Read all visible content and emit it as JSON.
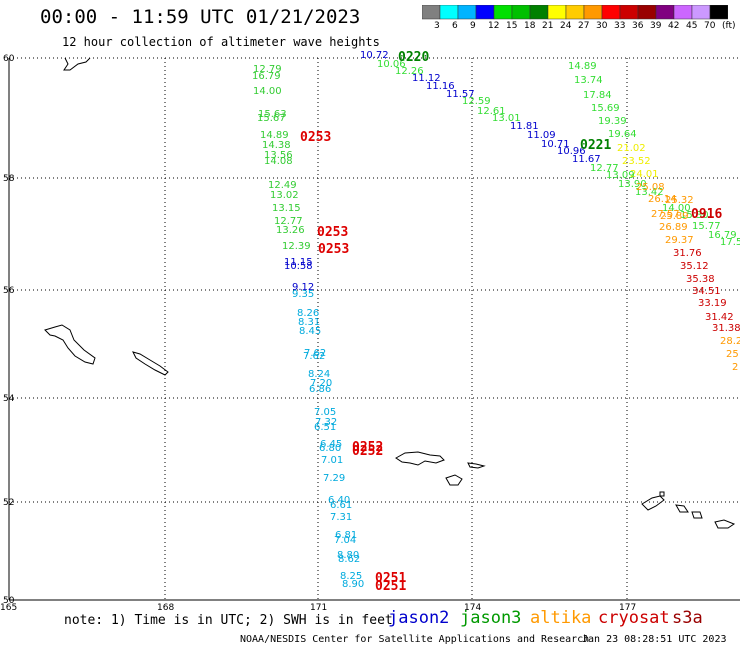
{
  "header": {
    "title": "00:00 - 11:59 UTC 01/21/2023",
    "subtitle": "12 hour collection of altimeter wave heights"
  },
  "colorbar": {
    "colors": [
      "#808080",
      "#00ffff",
      "#00b4ff",
      "#0000ff",
      "#00e000",
      "#00c000",
      "#008000",
      "#ffff00",
      "#ffcc00",
      "#ff9900",
      "#ff0000",
      "#cc0000",
      "#990000",
      "#800080",
      "#cc66ff",
      "#cc99ff",
      "#000000"
    ],
    "labels": [
      "3",
      "6",
      "9",
      "12",
      "15",
      "18",
      "21",
      "24",
      "27",
      "30",
      "33",
      "36",
      "39",
      "42",
      "45",
      "70",
      "(ft)"
    ]
  },
  "map": {
    "lat_labels": [
      "60",
      "58",
      "56",
      "54",
      "52",
      "50"
    ],
    "lon_labels": [
      "165",
      "168",
      "171",
      "174",
      "177"
    ],
    "passes": [
      {
        "id": "p1",
        "color": "#33cc33",
        "points": [
          [
            "12.79",
            "253",
            "72"
          ],
          [
            "16.79",
            "252",
            "79"
          ],
          [
            "14.00",
            "253",
            "94"
          ],
          [
            "15.63",
            "258",
            "117"
          ],
          [
            "15.67",
            "257",
            "121"
          ],
          [
            "14.89",
            "260",
            "138"
          ],
          [
            "14.38",
            "262",
            "148"
          ],
          [
            "13.56",
            "264",
            "158"
          ],
          [
            "14.08",
            "264",
            "164"
          ],
          [
            "12.49",
            "268",
            "188"
          ],
          [
            "13.02",
            "270",
            "198"
          ],
          [
            "13.15",
            "272",
            "211"
          ],
          [
            "12.77",
            "274",
            "224"
          ],
          [
            "13.26",
            "276",
            "233"
          ],
          [
            "12.39",
            "282",
            "249"
          ]
        ]
      },
      {
        "id": "p2",
        "color": "#0000cc",
        "points": [
          [
            "11.15",
            "284",
            "265"
          ],
          [
            "10.58",
            "284",
            "269"
          ],
          [
            "9.12",
            "292",
            "290"
          ]
        ]
      },
      {
        "id": "p3",
        "color": "#00aadd",
        "points": [
          [
            "9.35",
            "292",
            "297"
          ],
          [
            "8.26",
            "297",
            "316"
          ],
          [
            "8.31",
            "298",
            "325"
          ],
          [
            "8.45",
            "299",
            "334"
          ],
          [
            "7.62",
            "304",
            "356"
          ],
          [
            "7.62",
            "303",
            "359"
          ],
          [
            "8.24",
            "308",
            "377"
          ],
          [
            "7.20",
            "310",
            "386"
          ],
          [
            "6.86",
            "309",
            "392"
          ],
          [
            "7.05",
            "314",
            "415"
          ],
          [
            "7.32",
            "315",
            "425"
          ],
          [
            "6.51",
            "314",
            "430"
          ],
          [
            "6.45",
            "320",
            "447"
          ],
          [
            "6.80",
            "319",
            "451"
          ],
          [
            "7.01",
            "321",
            "463"
          ],
          [
            "7.29",
            "323",
            "481"
          ],
          [
            "6.40",
            "328",
            "503"
          ],
          [
            "6.61",
            "330",
            "508"
          ],
          [
            "7.31",
            "330",
            "520"
          ],
          [
            "6.81",
            "335",
            "538"
          ],
          [
            "7.04",
            "334",
            "543"
          ],
          [
            "8.80",
            "337",
            "558"
          ],
          [
            "8.62",
            "338",
            "562"
          ],
          [
            "8.25",
            "340",
            "579"
          ],
          [
            "8.90",
            "342",
            "587"
          ]
        ]
      },
      {
        "id": "p4",
        "color": "#0000cc",
        "points": [
          [
            "10.72",
            "360",
            "58"
          ],
          [
            "11.12",
            "412",
            "81"
          ],
          [
            "11.16",
            "426",
            "89"
          ],
          [
            "11.57",
            "446",
            "97"
          ],
          [
            "11.81",
            "510",
            "129"
          ],
          [
            "11.09",
            "527",
            "138"
          ],
          [
            "10.71",
            "541",
            "147"
          ],
          [
            "10.96",
            "557",
            "154"
          ],
          [
            "11.67",
            "572",
            "162"
          ]
        ]
      },
      {
        "id": "p5",
        "color": "#33dd33",
        "points": [
          [
            "10.06",
            "377",
            "67"
          ],
          [
            "12.26",
            "395",
            "74"
          ],
          [
            "12.59",
            "462",
            "104"
          ],
          [
            "12.61",
            "477",
            "114"
          ],
          [
            "13.01",
            "492",
            "121"
          ],
          [
            "12.77",
            "590",
            "171"
          ]
        ]
      },
      {
        "id": "p6",
        "color": "#33dd33",
        "points": [
          [
            "14.89",
            "568",
            "69"
          ],
          [
            "13.74",
            "574",
            "83"
          ],
          [
            "17.84",
            "583",
            "98"
          ],
          [
            "15.69",
            "591",
            "111"
          ],
          [
            "19.39",
            "598",
            "124"
          ],
          [
            "19.64",
            "608",
            "137"
          ]
        ]
      },
      {
        "id": "p7",
        "color": "#eeee00",
        "points": [
          [
            "21.02",
            "617",
            "151"
          ],
          [
            "23.52",
            "622",
            "164"
          ],
          [
            "24.01",
            "630",
            "177"
          ]
        ]
      },
      {
        "id": "p8",
        "color": "#33dd33",
        "points": [
          [
            "13.09",
            "606",
            "178"
          ],
          [
            "13.90",
            "618",
            "187"
          ],
          [
            "13.42",
            "635",
            "195"
          ],
          [
            "14.00",
            "662",
            "211"
          ],
          [
            "15.30",
            "680",
            "218"
          ],
          [
            "15.77",
            "692",
            "229"
          ],
          [
            "16.79",
            "708",
            "238"
          ],
          [
            "17.5",
            "720",
            "245"
          ]
        ]
      },
      {
        "id": "p9",
        "color": "#ff9900",
        "points": [
          [
            "25.08",
            "636",
            "190"
          ],
          [
            "26.14",
            "648",
            "202"
          ],
          [
            "27.57",
            "651",
            "217"
          ],
          [
            "26.89",
            "659",
            "230"
          ],
          [
            "29.37",
            "665",
            "243"
          ],
          [
            "25.32",
            "665",
            "203"
          ],
          [
            "25.89",
            "660",
            "219"
          ],
          [
            "28.2",
            "720",
            "344"
          ],
          [
            "25",
            "726",
            "357"
          ],
          [
            "2",
            "732",
            "370"
          ]
        ]
      },
      {
        "id": "p10",
        "color": "#cc0000",
        "points": [
          [
            "31.76",
            "673",
            "256"
          ],
          [
            "35.12",
            "680",
            "269"
          ],
          [
            "35.38",
            "686",
            "282"
          ],
          [
            "34.51",
            "692",
            "294"
          ],
          [
            "33.19",
            "698",
            "306"
          ],
          [
            "31.42",
            "705",
            "320"
          ],
          [
            "31.38",
            "712",
            "331"
          ]
        ]
      }
    ],
    "time_labels": [
      {
        "text": "0220",
        "color": "#008000",
        "x": "398",
        "y": "61"
      },
      {
        "text": "0253",
        "color": "#dd0000",
        "x": "300",
        "y": "141"
      },
      {
        "text": "0221",
        "color": "#008000",
        "x": "580",
        "y": "149"
      },
      {
        "text": "0916",
        "color": "#cc0000",
        "x": "691",
        "y": "218"
      },
      {
        "text": "0253",
        "color": "#dd0000",
        "x": "317",
        "y": "236"
      },
      {
        "text": "0253",
        "color": "#dd0000",
        "x": "318",
        "y": "253"
      },
      {
        "text": "0252",
        "color": "#dd0000",
        "x": "352",
        "y": "451"
      },
      {
        "text": "0252",
        "color": "#dd0000",
        "x": "352",
        "y": "455"
      },
      {
        "text": "0251",
        "color": "#dd0000",
        "x": "375",
        "y": "582"
      },
      {
        "text": "0251",
        "color": "#dd0000",
        "x": "375",
        "y": "590"
      }
    ]
  },
  "footer": {
    "note": "note: 1) Time is in UTC; 2) SWH is in feet",
    "legend": [
      {
        "label": "jason2",
        "color": "#0000cc"
      },
      {
        "label": "jason3",
        "color": "#009900"
      },
      {
        "label": "altika",
        "color": "#ff9900"
      },
      {
        "label": "cryosat",
        "color": "#cc0000"
      },
      {
        "label": "s3a",
        "color": "#990000"
      }
    ],
    "credit": "NOAA/NESDIS Center for Satellite Applications and Research",
    "generated": "Jan 23 08:28:51 UTC 2023"
  }
}
